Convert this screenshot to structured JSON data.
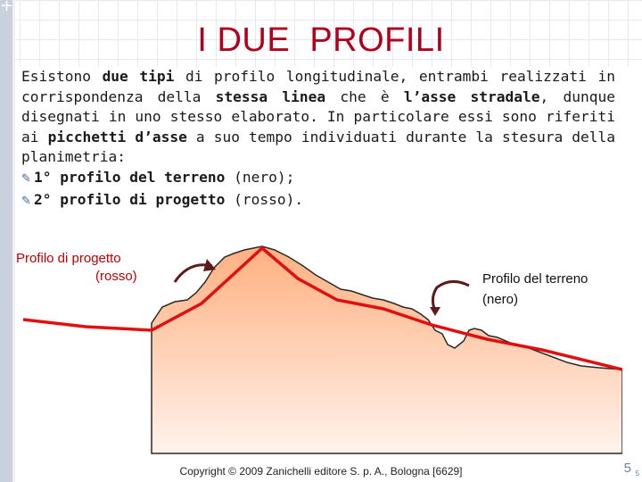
{
  "title": "I DUE  PROFILI",
  "paragraph": {
    "p1": "Esistono ",
    "b1": "due tipi",
    "p2": " di profilo longitudinale, entrambi realizzati in corrispondenza della ",
    "b2": "stessa linea",
    "p3": " che è ",
    "b3": "l’asse stradale",
    "p4": ", dunque disegnati in uno stesso elaborato. In particolare essi sono riferiti ai ",
    "b4": "picchetti d’asse",
    "p5": " a suo tempo individuati durante la stesura della planimetria:"
  },
  "bullets": [
    {
      "icon": "pencil-icon",
      "bold": "1° profilo del terreno",
      "rest": " (nero);"
    },
    {
      "icon": "pencil-icon",
      "bold": "2° profilo di progetto",
      "rest": " (rosso)."
    }
  ],
  "labels": {
    "progetto": "Profilo di progetto",
    "progetto_sub": "(rosso)",
    "terreno": "Profilo del terreno",
    "terreno_sub": "(nero)"
  },
  "colors": {
    "terrain_fill": "#f0b48c",
    "design_line": "#e01010",
    "arrow": "#7a2a2a"
  },
  "footer": {
    "copyright": "Copyright © 2009 Zanichelli editore S. p. A., Bologna [6629]",
    "page": "5",
    "page_small": "5"
  }
}
